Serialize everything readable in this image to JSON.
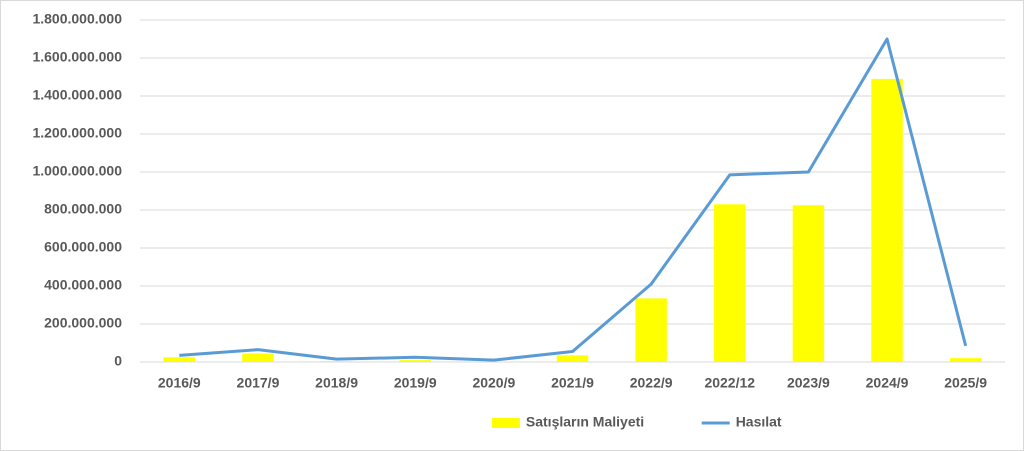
{
  "chart_data": {
    "type": "combo",
    "categories": [
      "2016/9",
      "2017/9",
      "2018/9",
      "2019/9",
      "2020/9",
      "2021/9",
      "2022/9",
      "2022/12",
      "2023/9",
      "2024/9",
      "2025/9"
    ],
    "series": [
      {
        "name": "Satışların Maliyeti",
        "type": "bar",
        "color": "#ffff00",
        "values": [
          25000000,
          45000000,
          5000000,
          10000000,
          3000000,
          35000000,
          335000000,
          830000000,
          825000000,
          1490000000,
          20000000
        ]
      },
      {
        "name": "Hasılat",
        "type": "line",
        "color": "#5b9bd5",
        "values": [
          35000000,
          65000000,
          15000000,
          25000000,
          10000000,
          55000000,
          410000000,
          985000000,
          1000000000,
          1700000000,
          85000000
        ]
      }
    ],
    "ylim": [
      0,
      1800000000
    ],
    "yticks": [
      0,
      {
        "value": 200000000,
        "label": "200.000.000"
      },
      {
        "value": 400000000,
        "label": "400.000.000"
      },
      {
        "value": 600000000,
        "label": "600.000.000"
      },
      {
        "value": 800000000,
        "label": "800.000.000"
      },
      {
        "value": 1000000000,
        "label": "1.000.000.000"
      },
      {
        "value": 1200000000,
        "label": "1.200.000.000"
      },
      {
        "value": 1400000000,
        "label": "1.400.000.000"
      },
      {
        "value": 1600000000,
        "label": "1.600.000.000"
      },
      {
        "value": 1800000000,
        "label": "1.800.000.000"
      }
    ],
    "grid": true,
    "legend": "bottom"
  }
}
